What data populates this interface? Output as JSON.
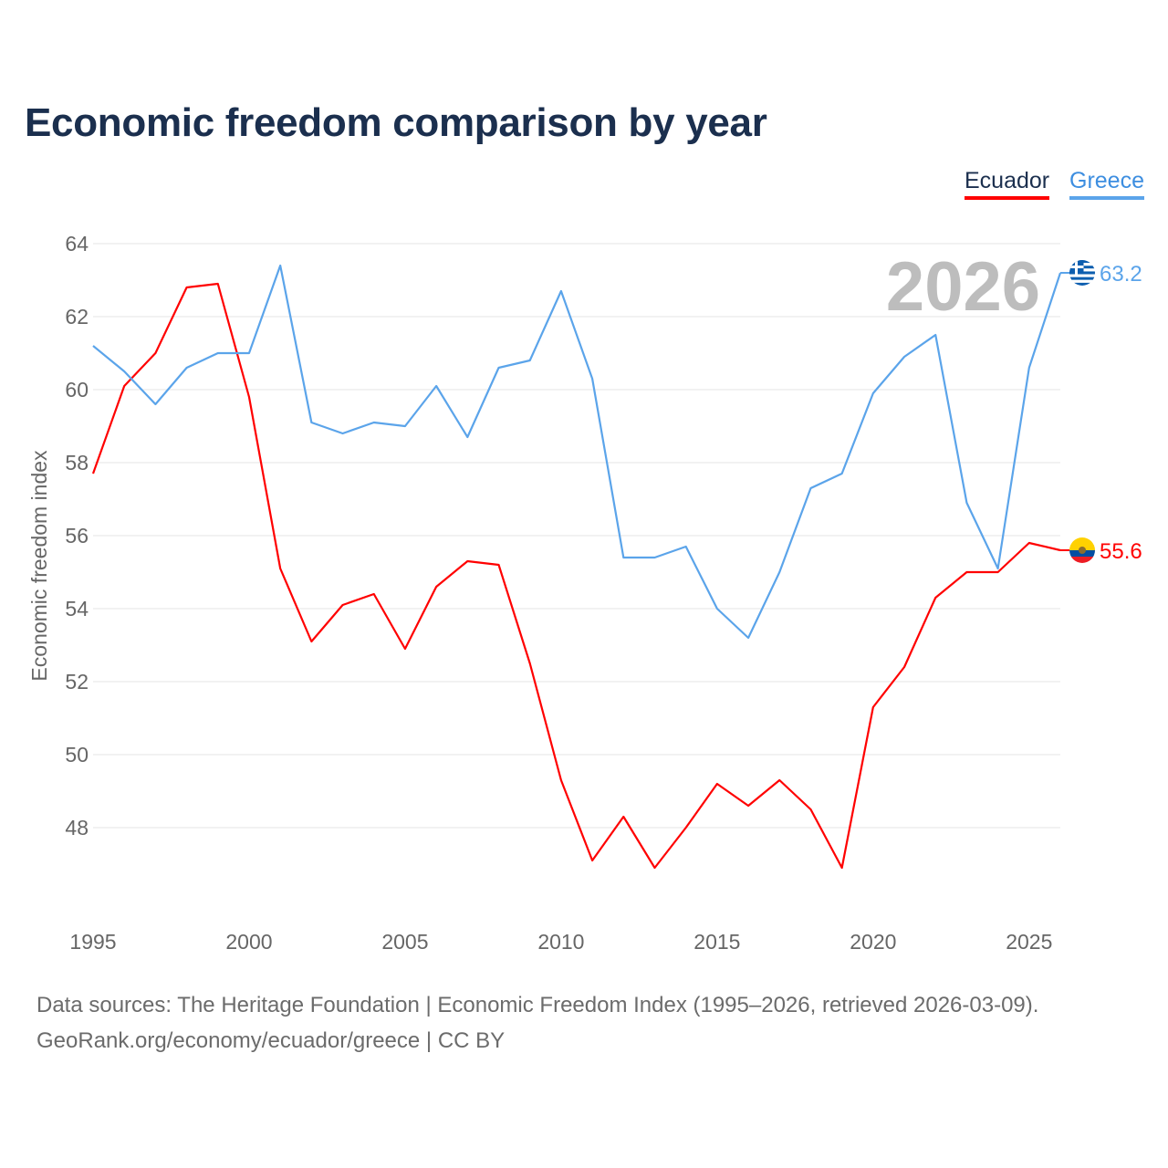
{
  "chart_data": {
    "type": "line",
    "title": "Economic freedom comparison by year",
    "xlabel": "",
    "ylabel": "Economic freedom index",
    "xlim": [
      1995,
      2026
    ],
    "ylim": [
      46,
      64
    ],
    "yticks": [
      48,
      50,
      52,
      54,
      56,
      58,
      60,
      62,
      64
    ],
    "xticks": [
      1995,
      2000,
      2005,
      2010,
      2015,
      2020,
      2025
    ],
    "grid": true,
    "legend_placement": "top-right",
    "watermark_year": "2026",
    "x": [
      1995,
      1996,
      1997,
      1998,
      1999,
      2000,
      2001,
      2002,
      2003,
      2004,
      2005,
      2006,
      2007,
      2008,
      2009,
      2010,
      2011,
      2012,
      2013,
      2014,
      2015,
      2016,
      2017,
      2018,
      2019,
      2020,
      2021,
      2022,
      2023,
      2024,
      2025,
      2026
    ],
    "series": [
      {
        "name": "Ecuador",
        "color": "#ff0000",
        "end_label": "55.6",
        "flag": "ecuador-flag",
        "values": [
          57.7,
          60.1,
          61.0,
          62.8,
          62.9,
          59.8,
          55.1,
          53.1,
          54.1,
          54.4,
          52.9,
          54.6,
          55.3,
          55.2,
          52.5,
          49.3,
          47.1,
          48.3,
          46.9,
          48.0,
          49.2,
          48.6,
          49.3,
          48.5,
          46.9,
          51.3,
          52.4,
          54.3,
          55.0,
          55.0,
          55.8,
          55.6
        ]
      },
      {
        "name": "Greece",
        "color": "#5ba4ea",
        "end_label": "63.2",
        "flag": "greece-flag",
        "values": [
          61.2,
          60.5,
          59.6,
          60.6,
          61.0,
          61.0,
          63.4,
          59.1,
          58.8,
          59.1,
          59.0,
          60.1,
          58.7,
          60.6,
          60.8,
          62.7,
          60.3,
          55.4,
          55.4,
          55.7,
          54.0,
          53.2,
          55.0,
          57.3,
          57.7,
          59.9,
          60.9,
          61.5,
          56.9,
          55.1,
          60.6,
          63.2
        ]
      }
    ]
  },
  "footer": {
    "source_line": "Data sources: The Heritage Foundation | Economic Freedom Index (1995–2026, retrieved 2026-03-09).",
    "credit_line": "GeoRank.org/economy/ecuador/greece | CC BY"
  }
}
